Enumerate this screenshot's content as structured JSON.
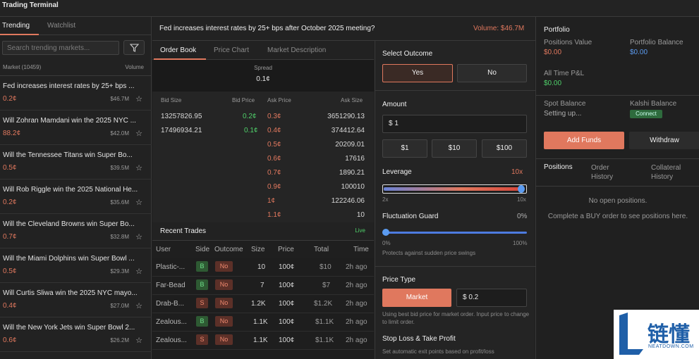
{
  "window": {
    "title": "Trading Terminal"
  },
  "left": {
    "tabs": [
      "Trending",
      "Watchlist"
    ],
    "search_placeholder": "Search trending markets...",
    "header": {
      "market": "Market (10459)",
      "volume": "Volume"
    },
    "markets": [
      {
        "question": "Fed increases interest rates by 25+ bps ...",
        "price": "0.2¢",
        "volume": "$46.7M"
      },
      {
        "question": "Will Zohran Mamdani win the 2025 NYC ...",
        "price": "88.2¢",
        "volume": "$42.0M"
      },
      {
        "question": "Will the Tennessee Titans win Super Bo...",
        "price": "0.5¢",
        "volume": "$39.5M"
      },
      {
        "question": "Will Rob Riggle win the 2025 National He...",
        "price": "0.2¢",
        "volume": "$35.6M"
      },
      {
        "question": "Will the Cleveland Browns win Super Bo...",
        "price": "0.7¢",
        "volume": "$32.8M"
      },
      {
        "question": "Will the Miami Dolphins win Super Bowl ...",
        "price": "0.5¢",
        "volume": "$29.3M"
      },
      {
        "question": "Will Curtis Sliwa win the 2025 NYC mayo...",
        "price": "0.4¢",
        "volume": "$27.0M"
      },
      {
        "question": "Will the New York Jets win Super Bowl 2...",
        "price": "0.6¢",
        "volume": "$26.2M"
      }
    ]
  },
  "market": {
    "title": "Fed increases interest rates by 25+ bps after October 2025 meeting?",
    "volume": "Volume: $46.7M"
  },
  "subtabs": [
    "Order Book",
    "Price Chart",
    "Market Description"
  ],
  "spread": {
    "label": "Spread",
    "value": "0.1¢"
  },
  "orderbook": {
    "headers": [
      "Bid Size",
      "Bid Price",
      "Ask Price",
      "Ask Size"
    ],
    "rows": [
      {
        "bid_size": "13257826.95",
        "bid_price": "0.2¢",
        "ask_price": "0.3¢",
        "ask_size": "3651290.13"
      },
      {
        "bid_size": "17496934.21",
        "bid_price": "0.1¢",
        "ask_price": "0.4¢",
        "ask_size": "374412.64"
      },
      {
        "bid_size": "",
        "bid_price": "",
        "ask_price": "0.5¢",
        "ask_size": "20209.01"
      },
      {
        "bid_size": "",
        "bid_price": "",
        "ask_price": "0.6¢",
        "ask_size": "17616"
      },
      {
        "bid_size": "",
        "bid_price": "",
        "ask_price": "0.7¢",
        "ask_size": "1890.21"
      },
      {
        "bid_size": "",
        "bid_price": "",
        "ask_price": "0.9¢",
        "ask_size": "100010"
      },
      {
        "bid_size": "",
        "bid_price": "",
        "ask_price": "1¢",
        "ask_size": "122246.06"
      },
      {
        "bid_size": "",
        "bid_price": "",
        "ask_price": "1.1¢",
        "ask_size": "10"
      }
    ]
  },
  "recent_trades": {
    "title": "Recent Trades",
    "live": "Live",
    "headers": [
      "User",
      "Side",
      "Outcome",
      "Size",
      "Price",
      "Total",
      "Time"
    ],
    "rows": [
      {
        "user": "Plastic-...",
        "side": "B",
        "outcome": "No",
        "size": "10",
        "price": "100¢",
        "total": "$10",
        "time": "2h ago"
      },
      {
        "user": "Far-Bead",
        "side": "B",
        "outcome": "No",
        "size": "7",
        "price": "100¢",
        "total": "$7",
        "time": "2h ago"
      },
      {
        "user": "Drab-B...",
        "side": "S",
        "outcome": "No",
        "size": "1.2K",
        "price": "100¢",
        "total": "$1.2K",
        "time": "2h ago"
      },
      {
        "user": "Zealous...",
        "side": "B",
        "outcome": "No",
        "size": "1.1K",
        "price": "100¢",
        "total": "$1.1K",
        "time": "2h ago"
      },
      {
        "user": "Zealous...",
        "side": "S",
        "outcome": "No",
        "size": "1.1K",
        "price": "100¢",
        "total": "$1.1K",
        "time": "2h ago"
      }
    ]
  },
  "order": {
    "select_outcome": "Select Outcome",
    "yes": "Yes",
    "no": "No",
    "amount_label": "Amount",
    "amount_value": "$ 1",
    "quick": [
      "$1",
      "$10",
      "$100"
    ],
    "leverage_label": "Leverage",
    "leverage_value": "10x",
    "leverage_level": 1.0,
    "leverage_min": "2x",
    "leverage_max": "10x",
    "guard_label": "Fluctuation Guard",
    "guard_value": "0%",
    "guard_level": 0.0,
    "guard_min": "0%",
    "guard_max": "100%",
    "guard_note": "Protects against sudden price swings",
    "price_type_label": "Price Type",
    "market_btn": "Market",
    "price_value": "$ 0.2",
    "price_note": "Using best bid price for market order. Input price to change to limit order.",
    "sl_label": "Stop Loss & Take Profit",
    "sl_note": "Set automatic exit points based on profit/loss"
  },
  "portfolio": {
    "title": "Portfolio",
    "positions_value_label": "Positions Value",
    "positions_value": "$0.00",
    "balance_label": "Portfolio Balance",
    "balance_value": "$0.00",
    "pnl_label": "All Time P&L",
    "pnl_value": "$0.00",
    "spot_label": "Spot Balance",
    "spot_value": "Setting up...",
    "kalshi_label": "Kalshi Balance",
    "connect": "Connect",
    "add_funds": "Add Funds",
    "withdraw": "Withdraw",
    "tabs": [
      "Positions",
      "Order History",
      "Collateral History"
    ],
    "empty_title": "No open positions.",
    "empty_note": "Complete a BUY order to see positions here."
  },
  "logo": {
    "text": "链懂",
    "url_text": "NEATDOWN.COM"
  },
  "colors": {
    "accent": "#e0785e",
    "green": "#4fd06a",
    "blue": "#5b9bf0"
  }
}
